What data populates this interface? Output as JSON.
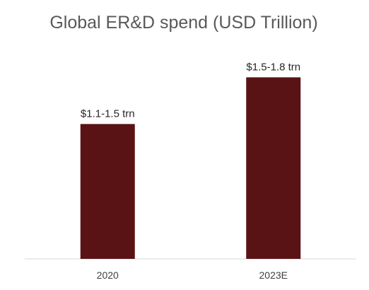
{
  "chart_data": {
    "type": "bar",
    "title": "Global ER&D spend (USD Trillion)",
    "categories": [
      "2020",
      "2023E"
    ],
    "data_labels": [
      "$1.1-1.5 trn",
      "$1.5-1.8 trn"
    ],
    "series": [
      {
        "values": [
          1.3,
          1.75
        ],
        "color": "#5a1315"
      }
    ],
    "ylim": [
      0,
      1.95
    ],
    "xlabel": "",
    "ylabel": "",
    "grid": false,
    "legend": "none"
  }
}
